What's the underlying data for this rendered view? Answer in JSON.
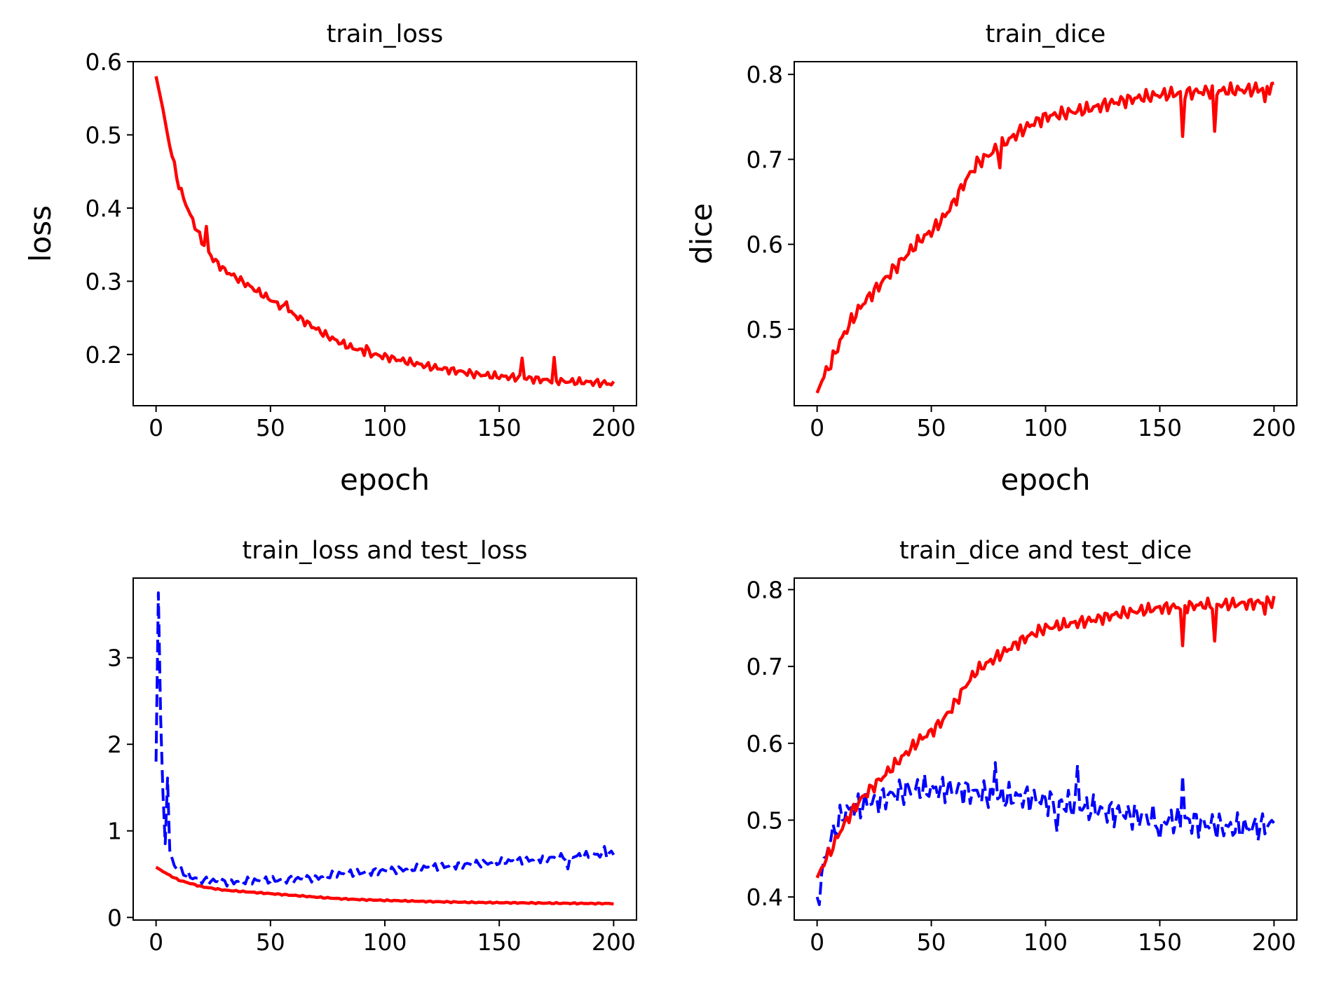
{
  "chart_data": [
    {
      "type": "line",
      "title": "train_loss",
      "xlabel": "epoch",
      "ylabel": "loss",
      "xlim": [
        -10,
        210
      ],
      "ylim": [
        0.13,
        0.6
      ],
      "xticks": [
        0,
        50,
        100,
        150,
        200
      ],
      "xtick_labels": [
        "0",
        "50",
        "100",
        "150",
        "200"
      ],
      "yticks": [
        0.2,
        0.3,
        0.4,
        0.5,
        0.6
      ],
      "ytick_labels": [
        "0.2",
        "0.3",
        "0.4",
        "0.5",
        "0.6"
      ],
      "grid": false,
      "series": [
        {
          "style": "solid",
          "color": "#ff0000",
          "anchors": [
            [
              0,
              0.58
            ],
            [
              2,
              0.55
            ],
            [
              5,
              0.5
            ],
            [
              10,
              0.43
            ],
            [
              15,
              0.39
            ],
            [
              20,
              0.355
            ],
            [
              25,
              0.33
            ],
            [
              30,
              0.315
            ],
            [
              35,
              0.305
            ],
            [
              40,
              0.295
            ],
            [
              45,
              0.285
            ],
            [
              50,
              0.275
            ],
            [
              55,
              0.265
            ],
            [
              60,
              0.255
            ],
            [
              65,
              0.245
            ],
            [
              70,
              0.235
            ],
            [
              75,
              0.225
            ],
            [
              80,
              0.217
            ],
            [
              85,
              0.21
            ],
            [
              90,
              0.205
            ],
            [
              95,
              0.2
            ],
            [
              100,
              0.197
            ],
            [
              110,
              0.19
            ],
            [
              120,
              0.183
            ],
            [
              130,
              0.178
            ],
            [
              140,
              0.173
            ],
            [
              150,
              0.17
            ],
            [
              160,
              0.168
            ],
            [
              170,
              0.165
            ],
            [
              180,
              0.163
            ],
            [
              190,
              0.162
            ],
            [
              200,
              0.16
            ]
          ],
          "noise": 0.006,
          "spikes": [
            [
              22,
              0.375
            ],
            [
              57,
              0.272
            ],
            [
              92,
              0.212
            ],
            [
              160,
              0.195
            ],
            [
              174,
              0.196
            ]
          ]
        }
      ]
    },
    {
      "type": "line",
      "title": "train_dice",
      "xlabel": "epoch",
      "ylabel": "dice",
      "xlim": [
        -10,
        210
      ],
      "ylim": [
        0.41,
        0.815
      ],
      "xticks": [
        0,
        50,
        100,
        150,
        200
      ],
      "xtick_labels": [
        "0",
        "50",
        "100",
        "150",
        "200"
      ],
      "yticks": [
        0.5,
        0.6,
        0.7,
        0.8
      ],
      "ytick_labels": [
        "0.5",
        "0.6",
        "0.7",
        "0.8"
      ],
      "grid": false,
      "series": [
        {
          "style": "solid",
          "color": "#ff0000",
          "anchors": [
            [
              0,
              0.425
            ],
            [
              3,
              0.445
            ],
            [
              6,
              0.46
            ],
            [
              10,
              0.485
            ],
            [
              15,
              0.51
            ],
            [
              20,
              0.53
            ],
            [
              25,
              0.545
            ],
            [
              30,
              0.56
            ],
            [
              35,
              0.575
            ],
            [
              40,
              0.59
            ],
            [
              45,
              0.605
            ],
            [
              50,
              0.615
            ],
            [
              55,
              0.63
            ],
            [
              60,
              0.65
            ],
            [
              65,
              0.675
            ],
            [
              70,
              0.695
            ],
            [
              75,
              0.705
            ],
            [
              80,
              0.715
            ],
            [
              85,
              0.725
            ],
            [
              90,
              0.735
            ],
            [
              95,
              0.743
            ],
            [
              100,
              0.75
            ],
            [
              110,
              0.755
            ],
            [
              120,
              0.76
            ],
            [
              130,
              0.767
            ],
            [
              140,
              0.772
            ],
            [
              150,
              0.776
            ],
            [
              160,
              0.778
            ],
            [
              170,
              0.78
            ],
            [
              180,
              0.781
            ],
            [
              190,
              0.782
            ],
            [
              200,
              0.785
            ]
          ],
          "noise": 0.009,
          "spikes": [
            [
              160,
              0.727
            ],
            [
              174,
              0.733
            ],
            [
              196,
              0.768
            ],
            [
              80,
              0.69
            ]
          ]
        }
      ]
    },
    {
      "type": "line",
      "title": "train_loss and test_loss",
      "xlabel": "",
      "ylabel": "",
      "xlim": [
        -10,
        210
      ],
      "ylim": [
        -0.03,
        3.92
      ],
      "xticks": [
        0,
        50,
        100,
        150,
        200
      ],
      "xtick_labels": [
        "0",
        "50",
        "100",
        "150",
        "200"
      ],
      "yticks": [
        0,
        1,
        2,
        3
      ],
      "ytick_labels": [
        "0",
        "1",
        "2",
        "3"
      ],
      "grid": false,
      "series": [
        {
          "style": "dashed",
          "color": "#0000ff",
          "anchors": [
            [
              0,
              1.8
            ],
            [
              1,
              3.75
            ],
            [
              2,
              2.3
            ],
            [
              3,
              1.4
            ],
            [
              4,
              0.85
            ],
            [
              5,
              1.65
            ],
            [
              6,
              0.75
            ],
            [
              8,
              0.6
            ],
            [
              10,
              0.55
            ],
            [
              15,
              0.47
            ],
            [
              20,
              0.43
            ],
            [
              30,
              0.41
            ],
            [
              40,
              0.42
            ],
            [
              50,
              0.43
            ],
            [
              60,
              0.44
            ],
            [
              70,
              0.46
            ],
            [
              80,
              0.5
            ],
            [
              90,
              0.52
            ],
            [
              100,
              0.54
            ],
            [
              110,
              0.56
            ],
            [
              120,
              0.58
            ],
            [
              130,
              0.6
            ],
            [
              140,
              0.62
            ],
            [
              150,
              0.64
            ],
            [
              160,
              0.66
            ],
            [
              170,
              0.68
            ],
            [
              180,
              0.7
            ],
            [
              190,
              0.72
            ],
            [
              200,
              0.74
            ]
          ],
          "noise": 0.05,
          "spikes": [
            [
              180,
              0.56
            ],
            [
              196,
              0.82
            ]
          ]
        },
        {
          "style": "solid",
          "color": "#ff0000",
          "anchors": [
            [
              0,
              0.58
            ],
            [
              5,
              0.5
            ],
            [
              10,
              0.43
            ],
            [
              20,
              0.355
            ],
            [
              30,
              0.315
            ],
            [
              40,
              0.295
            ],
            [
              50,
              0.275
            ],
            [
              60,
              0.255
            ],
            [
              70,
              0.235
            ],
            [
              80,
              0.217
            ],
            [
              90,
              0.205
            ],
            [
              100,
              0.197
            ],
            [
              120,
              0.183
            ],
            [
              140,
              0.173
            ],
            [
              160,
              0.168
            ],
            [
              180,
              0.163
            ],
            [
              200,
              0.16
            ]
          ],
          "noise": 0.008,
          "spikes": []
        }
      ]
    },
    {
      "type": "line",
      "title": "train_dice and test_dice",
      "xlabel": "",
      "ylabel": "",
      "xlim": [
        -10,
        210
      ],
      "ylim": [
        0.37,
        0.815
      ],
      "xticks": [
        0,
        50,
        100,
        150,
        200
      ],
      "xtick_labels": [
        "0",
        "50",
        "100",
        "150",
        "200"
      ],
      "yticks": [
        0.4,
        0.5,
        0.6,
        0.7,
        0.8
      ],
      "ytick_labels": [
        "0.4",
        "0.5",
        "0.6",
        "0.7",
        "0.8"
      ],
      "grid": false,
      "series": [
        {
          "style": "dashed",
          "color": "#0000ff",
          "anchors": [
            [
              0,
              0.4
            ],
            [
              1,
              0.39
            ],
            [
              2,
              0.43
            ],
            [
              4,
              0.46
            ],
            [
              8,
              0.49
            ],
            [
              12,
              0.51
            ],
            [
              20,
              0.52
            ],
            [
              30,
              0.53
            ],
            [
              40,
              0.54
            ],
            [
              50,
              0.54
            ],
            [
              60,
              0.54
            ],
            [
              70,
              0.535
            ],
            [
              80,
              0.53
            ],
            [
              90,
              0.53
            ],
            [
              100,
              0.525
            ],
            [
              110,
              0.52
            ],
            [
              120,
              0.515
            ],
            [
              130,
              0.51
            ],
            [
              140,
              0.505
            ],
            [
              150,
              0.5
            ],
            [
              160,
              0.5
            ],
            [
              170,
              0.495
            ],
            [
              180,
              0.49
            ],
            [
              190,
              0.49
            ],
            [
              200,
              0.495
            ]
          ],
          "noise": 0.02,
          "spikes": [
            [
              78,
              0.575
            ],
            [
              114,
              0.572
            ],
            [
              160,
              0.558
            ],
            [
              105,
              0.485
            ],
            [
              150,
              0.475
            ]
          ]
        },
        {
          "style": "solid",
          "color": "#ff0000",
          "anchors": [
            [
              0,
              0.425
            ],
            [
              3,
              0.445
            ],
            [
              6,
              0.46
            ],
            [
              10,
              0.485
            ],
            [
              15,
              0.51
            ],
            [
              20,
              0.53
            ],
            [
              25,
              0.545
            ],
            [
              30,
              0.56
            ],
            [
              35,
              0.575
            ],
            [
              40,
              0.59
            ],
            [
              45,
              0.605
            ],
            [
              50,
              0.615
            ],
            [
              55,
              0.63
            ],
            [
              60,
              0.65
            ],
            [
              65,
              0.675
            ],
            [
              70,
              0.695
            ],
            [
              75,
              0.705
            ],
            [
              80,
              0.715
            ],
            [
              85,
              0.725
            ],
            [
              90,
              0.735
            ],
            [
              95,
              0.743
            ],
            [
              100,
              0.75
            ],
            [
              110,
              0.755
            ],
            [
              120,
              0.76
            ],
            [
              130,
              0.767
            ],
            [
              140,
              0.772
            ],
            [
              150,
              0.776
            ],
            [
              160,
              0.778
            ],
            [
              170,
              0.78
            ],
            [
              180,
              0.781
            ],
            [
              190,
              0.782
            ],
            [
              200,
              0.785
            ]
          ],
          "noise": 0.009,
          "spikes": [
            [
              160,
              0.727
            ],
            [
              174,
              0.733
            ],
            [
              196,
              0.768
            ]
          ]
        }
      ]
    }
  ]
}
